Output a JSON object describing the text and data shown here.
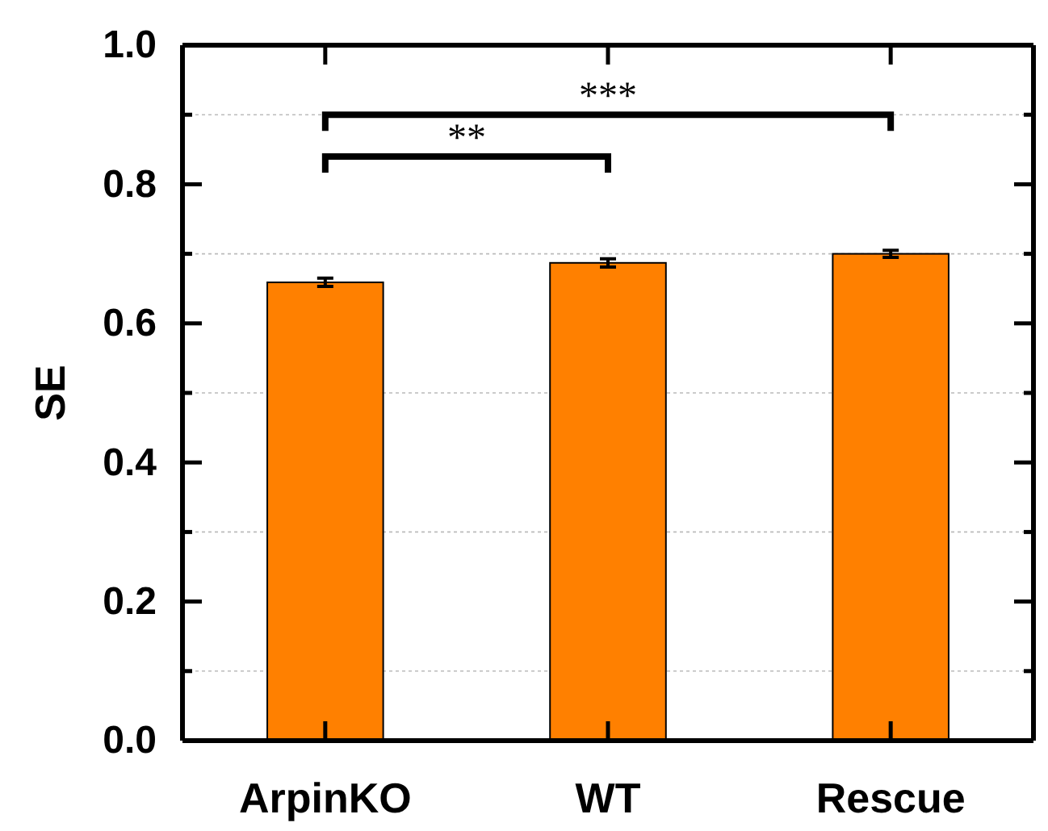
{
  "chart_data": {
    "type": "bar",
    "ylabel": "SE",
    "categories": [
      "ArpinKO",
      "WT",
      "Rescue"
    ],
    "values": [
      0.659,
      0.687,
      0.7
    ],
    "color": "#ff8000",
    "errors": [
      0.006,
      0.006,
      0.005
    ],
    "ylim": [
      0,
      1
    ],
    "yticks": [
      {
        "value": 0,
        "label": "0.0"
      },
      {
        "value": 0.1,
        "label": null
      },
      0.2,
      {
        "value": 0.3,
        "label": null
      },
      0.4,
      {
        "value": 0.5,
        "label": null
      },
      0.6,
      {
        "value": 0.7,
        "label": null
      },
      0.8,
      {
        "value": 0.9,
        "label": null
      },
      {
        "value": 1,
        "label": "1.0"
      }
    ],
    "grid": true,
    "annotations": [
      "**",
      "***"
    ]
  }
}
